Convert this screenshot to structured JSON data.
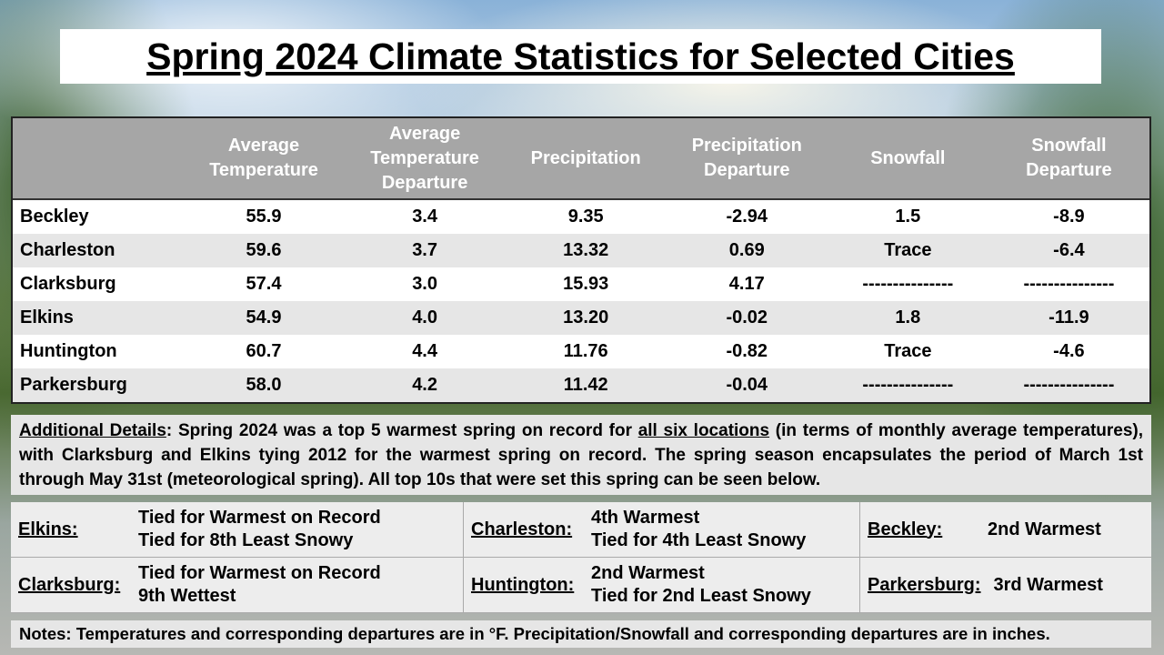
{
  "title": "Spring 2024 Climate Statistics for Selected Cities",
  "table": {
    "header": [
      "Average Temperature",
      "Average Temperature Departure",
      "Precipitation",
      "Precipitation Departure",
      "Snowfall",
      "Snowfall Departure"
    ],
    "rows": [
      [
        "Beckley",
        "55.9",
        "3.4",
        "9.35",
        "-2.94",
        "1.5",
        "-8.9"
      ],
      [
        "Charleston",
        "59.6",
        "3.7",
        "13.32",
        "0.69",
        "Trace",
        "-6.4"
      ],
      [
        "Clarksburg",
        "57.4",
        "3.0",
        "15.93",
        "4.17",
        "---------------",
        "---------------"
      ],
      [
        "Elkins",
        "54.9",
        "4.0",
        "13.20",
        "-0.02",
        "1.8",
        "-11.9"
      ],
      [
        "Huntington",
        "60.7",
        "4.4",
        "11.76",
        "-0.82",
        "Trace",
        "-4.6"
      ],
      [
        "Parkersburg",
        "58.0",
        "4.2",
        "11.42",
        "-0.04",
        "---------------",
        "---------------"
      ]
    ]
  },
  "details": {
    "label": "Additional Details",
    "text": [
      ": Spring 2024 was a top 5 warmest spring on record for ",
      "all six locations",
      " (in terms of monthly average temperatures), with Clarksburg and Elkins tying 2012 for the warmest spring on record. The spring season encapsulates the period of March 1st through May 31st (meteorological spring). All top 10s that were set this spring can be seen below."
    ]
  },
  "records": [
    {
      "city": "Elkins:",
      "lines": [
        "Tied for Warmest on Record",
        "Tied for 8th Least Snowy"
      ]
    },
    {
      "city": "Charleston:",
      "lines": [
        "4th Warmest",
        "Tied for 4th Least Snowy"
      ]
    },
    {
      "city": "Beckley:",
      "lines": [
        "2nd Warmest"
      ]
    },
    {
      "city": "Clarksburg:",
      "lines": [
        "Tied for Warmest on Record",
        "9th Wettest"
      ]
    },
    {
      "city": "Huntington:",
      "lines": [
        "2nd Warmest",
        "Tied for 2nd Least Snowy"
      ]
    },
    {
      "city": "Parkersburg:",
      "lines": [
        "3rd Warmest"
      ]
    }
  ],
  "notes": "Notes: Temperatures and corresponding departures are in °F. Precipitation/Snowfall and corresponding departures are in inches."
}
